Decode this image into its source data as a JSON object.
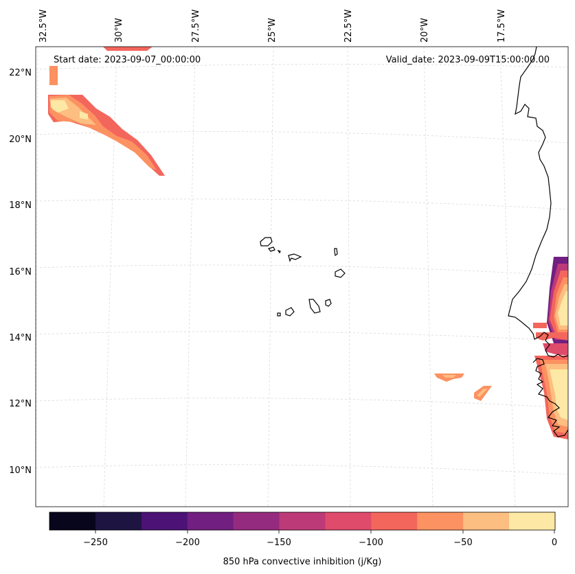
{
  "header": {
    "start_date": "Start date: 2023-09-07_00:00:00",
    "valid_date": "Valid_date: 2023-09-09T15:00:00.00"
  },
  "axes": {
    "lon_labels": [
      "32.5°W",
      "30°W",
      "27.5°W",
      "25°W",
      "22.5°W",
      "20°W",
      "17.5°W"
    ],
    "lat_labels": [
      "22°N",
      "20°N",
      "18°N",
      "16°N",
      "14°N",
      "12°N",
      "10°N"
    ]
  },
  "colorbar": {
    "label": "850 hPa convective inhibition (j/Kg)",
    "ticks": [
      "−250",
      "−200",
      "−150",
      "−100",
      "−50",
      "0"
    ],
    "colors": [
      "#07061c",
      "#1e1442",
      "#4c1275",
      "#711f80",
      "#952b7f",
      "#bc3a77",
      "#df4b6a",
      "#f3665c",
      "#fc9161",
      "#fdbe81",
      "#fde8a5"
    ]
  },
  "chart_data": {
    "type": "heatmap",
    "variable": "850 hPa convective inhibition",
    "units": "j/Kg",
    "levels": [
      -275,
      -250,
      -225,
      -200,
      -175,
      -150,
      -125,
      -100,
      -75,
      -50,
      -25,
      0
    ]
  }
}
